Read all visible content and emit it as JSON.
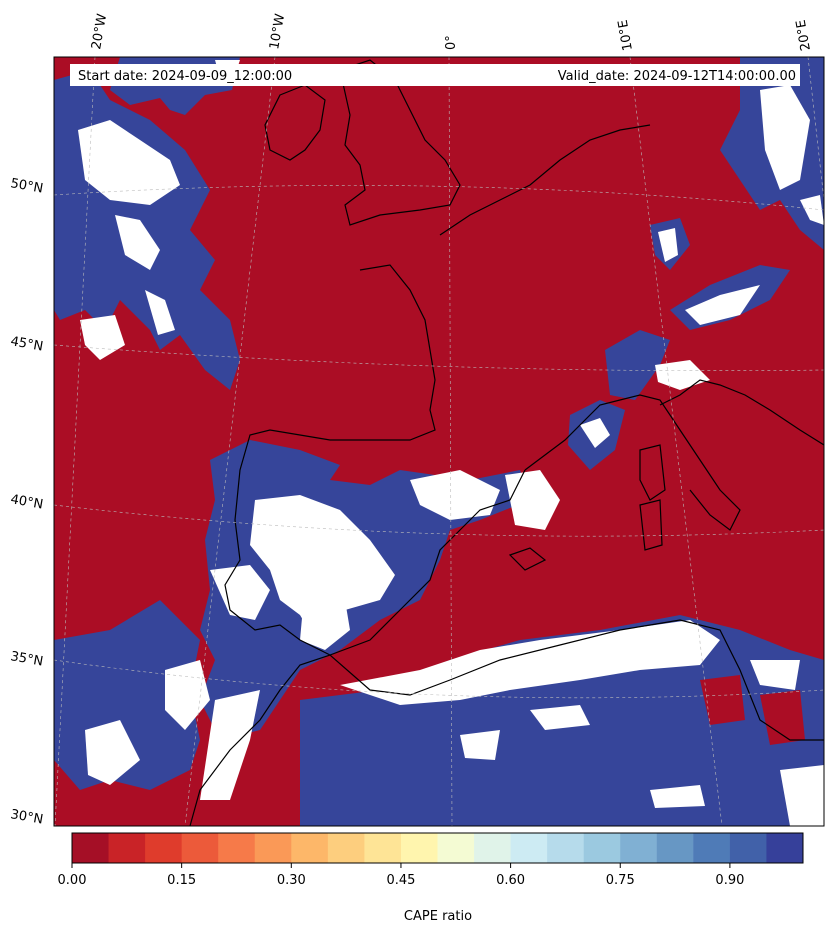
{
  "header": {
    "start_date": "Start date: 2024-09-09_12:00:00",
    "valid_date": "Valid_date: 2024-09-12T14:00:00.00"
  },
  "graticule": {
    "longitude_labels": [
      "20°W",
      "10°W",
      "0°",
      "10°E",
      "20°E"
    ],
    "latitude_labels": [
      "50°N",
      "45°N",
      "40°N",
      "35°N",
      "30°N"
    ]
  },
  "colorbar": {
    "label": "CAPE ratio",
    "ticks": [
      "0.00",
      "0.15",
      "0.30",
      "0.45",
      "0.60",
      "0.75",
      "0.90"
    ],
    "range": [
      0,
      1
    ],
    "levels": 20,
    "colors": [
      "#a50f26",
      "#c92327",
      "#df3c2c",
      "#ec5a3a",
      "#f67a49",
      "#fa9957",
      "#fdb769",
      "#fdce7e",
      "#fee496",
      "#fff5ae",
      "#f4fbd3",
      "#e0f3e9",
      "#cdebf3",
      "#b6dbeb",
      "#9bc9e0",
      "#80b0d3",
      "#6797c4",
      "#4f7bb7",
      "#4161a9",
      "#36409a"
    ]
  },
  "map": {
    "background_color": "#ab0d25",
    "high_color": "#36459a",
    "missing_color": "#ffffff",
    "coastline_color": "#000000"
  }
}
